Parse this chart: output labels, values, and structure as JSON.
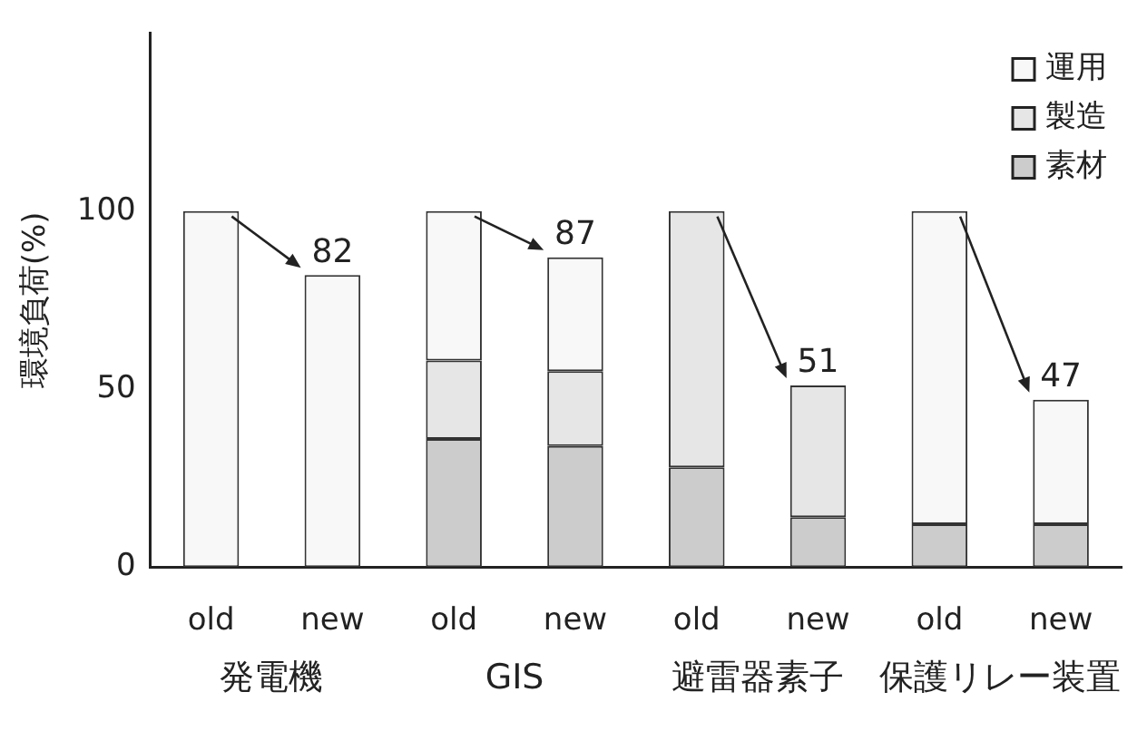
{
  "chart_data": {
    "type": "bar",
    "stacked": true,
    "ylabel": "環境負荷(%)",
    "categories": [
      "old",
      "new",
      "old",
      "new",
      "old",
      "new",
      "old",
      "new"
    ],
    "series": [
      {
        "name": "素材",
        "color": "#cccccc",
        "values": [
          0,
          0,
          36,
          34,
          28,
          14,
          12,
          12
        ]
      },
      {
        "name": "製造",
        "color": "#e6e6e6",
        "values": [
          0,
          0,
          22,
          21,
          72,
          37,
          0,
          0
        ]
      },
      {
        "name": "運用",
        "color": "#f8f8f8",
        "values": [
          100,
          82,
          42,
          32,
          0,
          0,
          88,
          35
        ]
      }
    ],
    "totals": [
      null,
      "82",
      null,
      "87",
      null,
      "51",
      null,
      "47"
    ],
    "annotations": [
      "発電機",
      "GIS",
      "避雷器素子",
      "保護リレー装置"
    ],
    "ylim": [
      0,
      150
    ],
    "yticks": [
      0,
      50,
      100
    ],
    "grid": false,
    "legend": "top right"
  }
}
